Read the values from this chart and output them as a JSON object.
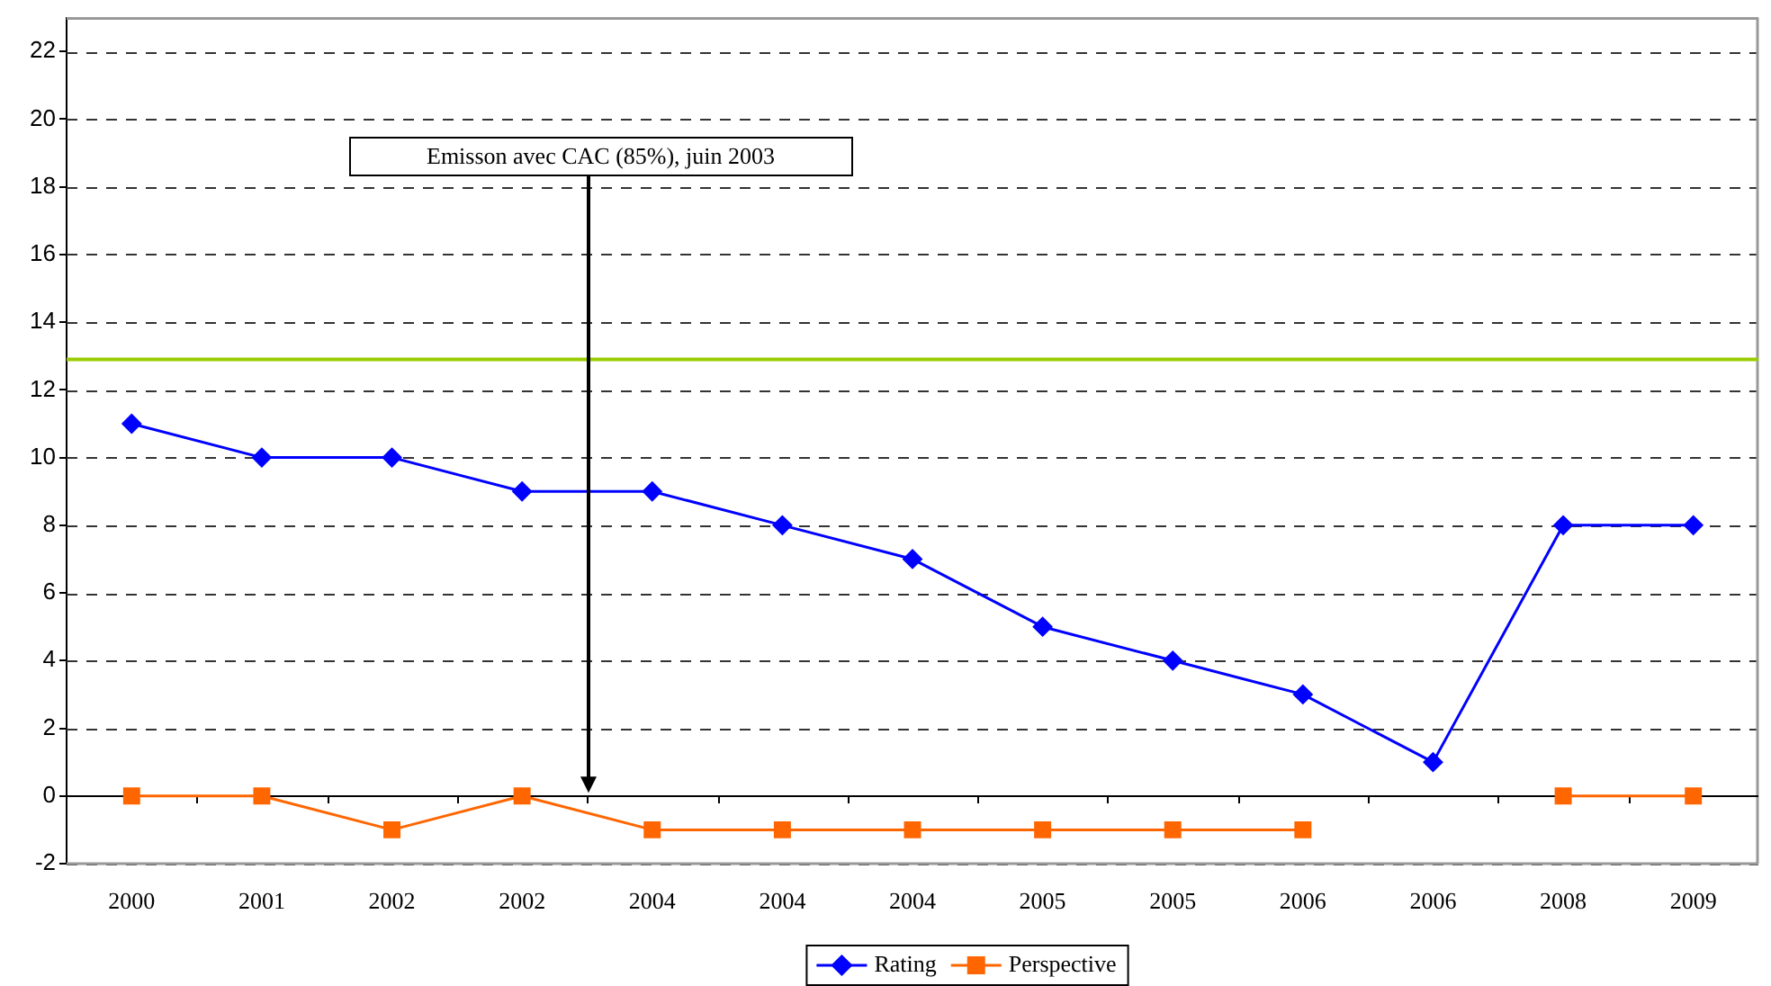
{
  "chart_data": {
    "type": "line",
    "categories": [
      "2000",
      "2001",
      "2002",
      "2002",
      "2004",
      "2004",
      "2004",
      "2005",
      "2005",
      "2006",
      "2006",
      "2008",
      "2009"
    ],
    "series": [
      {
        "name": "Rating",
        "color": "#0000ff",
        "marker": "diamond",
        "values": [
          11,
          10,
          10,
          9,
          9,
          8,
          7,
          5,
          4,
          3,
          1,
          8,
          8
        ]
      },
      {
        "name": "Perspective",
        "color": "#ff6600",
        "marker": "square",
        "values": [
          0,
          0,
          -1,
          0,
          -1,
          -1,
          -1,
          -1,
          -1,
          -1,
          null,
          0,
          0
        ]
      }
    ],
    "ylim": [
      -2,
      23
    ],
    "yticks": [
      -2,
      0,
      2,
      4,
      6,
      8,
      10,
      12,
      14,
      16,
      18,
      20,
      22
    ],
    "grid": "y",
    "legend": "bottom",
    "ref_lines": [
      {
        "axis": "y",
        "value": 12.9,
        "color": "#99cc00"
      }
    ],
    "annotations": [
      "Emisson avec CAC (85%), juin 2003"
    ]
  }
}
